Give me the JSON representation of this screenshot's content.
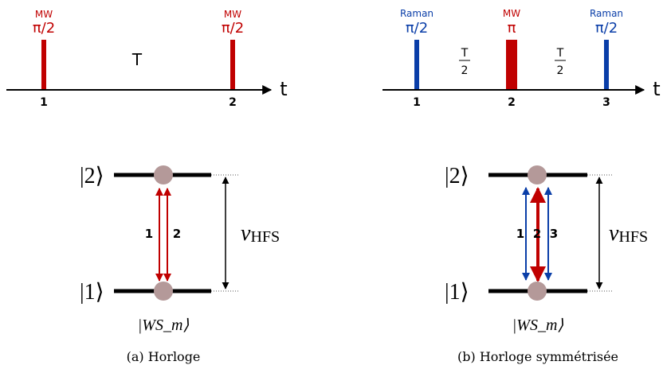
{
  "colors": {
    "mw": "#c00000",
    "raman": "#0a3ea8",
    "atom": "#b49999",
    "ink": "#000000"
  },
  "panel_a": {
    "pulse_1": {
      "type": "MW",
      "angle": "π/2"
    },
    "pulse_2": {
      "type": "MW",
      "angle": "π/2"
    },
    "interval": "T",
    "axis_label": "t",
    "markers": [
      "1",
      "2"
    ],
    "level_top": "|2⟩",
    "level_bottom": "|1⟩",
    "transition_labels": [
      "1",
      "2"
    ],
    "nu": "ν",
    "nu_sub": "HFS",
    "state_label": "|WS_m⟩",
    "caption": "(a) Horloge"
  },
  "panel_b": {
    "pulse_1": {
      "type": "Raman",
      "angle": "π/2"
    },
    "pulse_2": {
      "type": "MW",
      "angle": "π"
    },
    "pulse_3": {
      "type": "Raman",
      "angle": "π/2"
    },
    "half_interval_num": "T",
    "half_interval_den": "2",
    "axis_label": "t",
    "markers": [
      "1",
      "2",
      "3"
    ],
    "level_top": "|2⟩",
    "level_bottom": "|1⟩",
    "transition_labels": [
      "1",
      "2",
      "3"
    ],
    "nu": "ν",
    "nu_sub": "HFS",
    "state_label": "|WS_m⟩",
    "caption": "(b) Horloge symmétrisée"
  }
}
